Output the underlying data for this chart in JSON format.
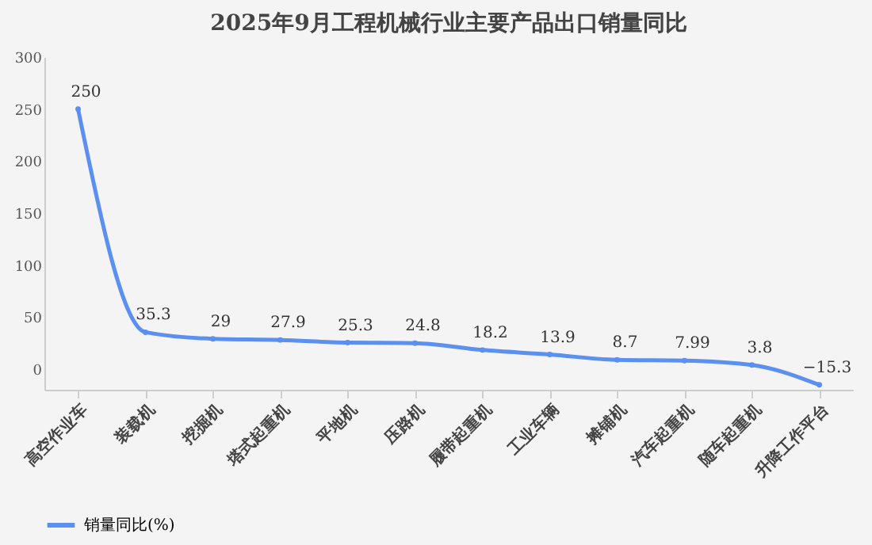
{
  "chart_data": {
    "type": "line",
    "title": "2025年9月工程机械行业主要产品出口销量同比",
    "categories": [
      "高空作业车",
      "装载机",
      "挖掘机",
      "塔式起重机",
      "平地机",
      "压路机",
      "履带起重机",
      "工业车辆",
      "摊铺机",
      "汽车起重机",
      "随车起重机",
      "升降工作平台"
    ],
    "series": [
      {
        "name": "销量同比(%)",
        "color": "#5b8ff0",
        "values": [
          250,
          35.3,
          29,
          27.9,
          25.3,
          24.8,
          18.2,
          13.9,
          8.7,
          7.99,
          3.8,
          -15.3
        ]
      }
    ],
    "ylim": [
      -20,
      300
    ],
    "yticks": [
      0,
      50,
      100,
      150,
      200,
      250,
      300
    ],
    "data_labels": true,
    "legend": "bottom",
    "marker": "circle",
    "grid": false
  }
}
